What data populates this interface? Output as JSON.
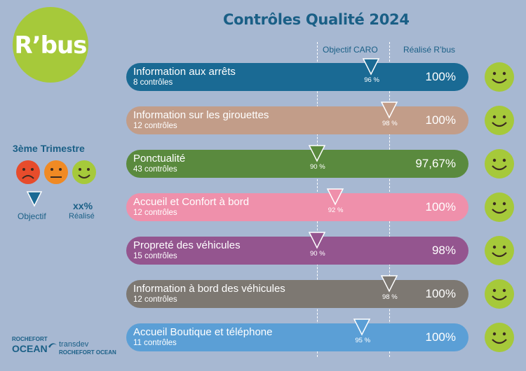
{
  "header": {
    "title": "Contrôles Qualité 2024"
  },
  "logo": {
    "text": "R’bus"
  },
  "columns": {
    "objective": "Objectif CARO",
    "actual": "Réalisé R’bus"
  },
  "legend": {
    "title": "3ème Trimestre",
    "objective_label": "Objectif",
    "actual_symbol": "xx%",
    "actual_label": "Réalisé",
    "face_colors": [
      "#e74c2c",
      "#f08a24",
      "#a6c93a"
    ]
  },
  "chart_data": {
    "type": "bar",
    "title": "Contrôles Qualité 2024",
    "subtitle": "3ème Trimestre",
    "xlim": [
      85,
      100
    ],
    "series": [
      {
        "name": "Objectif CARO",
        "values": [
          96,
          98,
          90,
          92,
          90,
          98,
          95
        ]
      },
      {
        "name": "Réalisé R’bus",
        "values": [
          100,
          100,
          97.67,
          100,
          98,
          100,
          100
        ]
      }
    ],
    "rows": [
      {
        "label": "Information aux arrêts",
        "sub": "8 contrôles",
        "objective": 96,
        "objective_label": "96 %",
        "actual": 100,
        "actual_label": "100%",
        "color": "#1a6a94",
        "marker_color": "#1a6a94",
        "status": "happy"
      },
      {
        "label": "Information sur les girouettes",
        "sub": "12 contrôles",
        "objective": 98,
        "objective_label": "98 %",
        "actual": 100,
        "actual_label": "100%",
        "color": "#c29d89",
        "marker_color": "#c29d89",
        "status": "happy"
      },
      {
        "label": "Ponctualité",
        "sub": "43 contrôles",
        "objective": 90,
        "objective_label": "90 %",
        "actual": 97.67,
        "actual_label": "97,67%",
        "color": "#5a8a3e",
        "marker_color": "#5a8a3e",
        "status": "happy"
      },
      {
        "label": "Accueil et Confort à bord",
        "sub": "12 contrôles",
        "objective": 92,
        "objective_label": "92 %",
        "actual": 100,
        "actual_label": "100%",
        "color": "#ef90ab",
        "marker_color": "#ef90ab",
        "status": "happy"
      },
      {
        "label": "Propreté des véhicules",
        "sub": "15 contrôles",
        "objective": 90,
        "objective_label": "90 %",
        "actual": 98,
        "actual_label": "98%",
        "color": "#94558f",
        "marker_color": "#94558f",
        "status": "happy"
      },
      {
        "label": "Information à bord des véhicules",
        "sub": "12 contrôles",
        "objective": 98,
        "objective_label": "98 %",
        "actual": 100,
        "actual_label": "100%",
        "color": "#7d7872",
        "marker_color": "#7d7872",
        "status": "happy"
      },
      {
        "label": "Accueil Boutique et téléphone",
        "sub": "11 contrôles",
        "objective": 95,
        "objective_label": "95 %",
        "actual": 100,
        "actual_label": "100%",
        "color": "#5b9fd6",
        "marker_color": "#5b9fd6",
        "status": "happy"
      }
    ]
  },
  "footer": {
    "partner1_top": "ROCHEFORT",
    "partner1_main": "OCEAN",
    "partner2_main": "transdev",
    "partner2_sub": "ROCHEFORT OCEAN"
  }
}
